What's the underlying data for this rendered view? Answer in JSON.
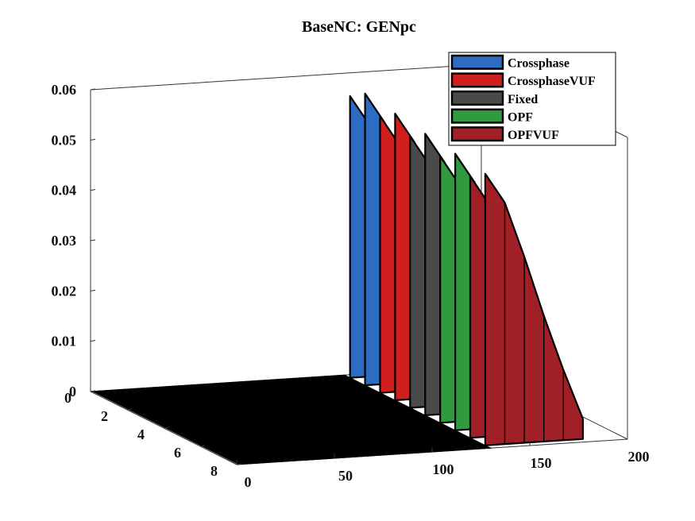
{
  "chart_data": {
    "type": "area",
    "title": "BaseNC: GENpc",
    "xlabel": "",
    "ylabel": "",
    "zlabel": "",
    "x_ticks": [
      0,
      50,
      100,
      150,
      200
    ],
    "y_ticks": [
      0,
      2,
      4,
      6,
      8
    ],
    "z_ticks": [
      "0",
      "0.01",
      "0.02",
      "0.03",
      "0.04",
      "0.05",
      "0.06"
    ],
    "xlim": [
      0,
      200
    ],
    "ylim": [
      0,
      8
    ],
    "zlim": [
      0,
      0.06
    ],
    "grid": false,
    "legend_position": "top-right",
    "x_values": [
      130,
      140,
      150,
      160,
      170,
      180
    ],
    "series": [
      {
        "name": "Crossphase",
        "color": "#2e6cc4",
        "slices": [
          [
            0.056,
            0.05,
            0.039,
            0.027,
            0.016,
            0.005
          ],
          [
            0.058,
            0.052,
            0.041,
            0.029,
            0.017,
            0.006
          ]
        ]
      },
      {
        "name": "CrossphaseVUF",
        "color": "#d11f1f",
        "slices": [
          [
            0.055,
            0.049,
            0.038,
            0.026,
            0.015,
            0.004
          ],
          [
            0.057,
            0.051,
            0.04,
            0.028,
            0.016,
            0.005
          ]
        ]
      },
      {
        "name": "Fixed",
        "color": "#4a4a4a",
        "slices": [
          [
            0.054,
            0.048,
            0.037,
            0.025,
            0.014,
            0.004
          ],
          [
            0.056,
            0.05,
            0.039,
            0.027,
            0.016,
            0.005
          ]
        ]
      },
      {
        "name": "OPF",
        "color": "#2f9a3e",
        "slices": [
          [
            0.053,
            0.047,
            0.036,
            0.024,
            0.013,
            0.003
          ],
          [
            0.055,
            0.049,
            0.038,
            0.026,
            0.015,
            0.004
          ]
        ]
      },
      {
        "name": "OPFVUF",
        "color": "#a11f26",
        "slices": [
          [
            0.052,
            0.046,
            0.035,
            0.023,
            0.012,
            0.003
          ],
          [
            0.054,
            0.048,
            0.037,
            0.025,
            0.014,
            0.004
          ]
        ]
      }
    ]
  }
}
